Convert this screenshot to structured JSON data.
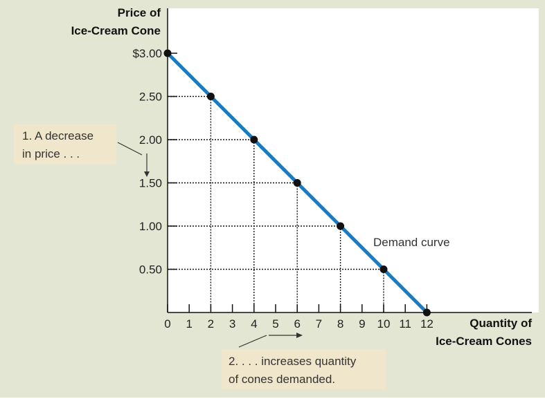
{
  "colors": {
    "background": "#e3e6d2",
    "plot_area": "#ffffff",
    "annotation_box": "#f0e6cc",
    "curve": "#1a7ac2",
    "points": "#111111",
    "guide_lines": "#111111",
    "axis": "#111111"
  },
  "y_axis_title": [
    "Price of",
    "Ice-Cream Cone"
  ],
  "x_axis_title": [
    "Quantity of",
    "Ice-Cream Cones"
  ],
  "annotation_1": [
    "1. A decrease",
    "in price . . ."
  ],
  "annotation_2": [
    "2. . . . increases quantity",
    "of cones demanded."
  ],
  "curve_label": "Demand curve",
  "chart_data": {
    "type": "line",
    "title": "",
    "xlabel": "Quantity of Ice-Cream Cones",
    "ylabel": "Price of Ice-Cream Cone",
    "xlim": [
      0,
      12
    ],
    "ylim": [
      0,
      3
    ],
    "grid": false,
    "x_ticks": [
      0,
      1,
      2,
      3,
      4,
      5,
      6,
      7,
      8,
      9,
      10,
      11,
      12
    ],
    "x_tick_labels": [
      "0",
      "1",
      "2",
      "3",
      "4",
      "5",
      "6",
      "7",
      "8",
      "9",
      "10",
      "11",
      "12"
    ],
    "y_ticks": [
      3.0,
      2.5,
      2.0,
      1.5,
      1.0,
      0.5
    ],
    "y_tick_labels": [
      "$3.00",
      "2.50",
      "2.00",
      "1.50",
      "1.00",
      "0.50"
    ],
    "series": [
      {
        "name": "Demand curve",
        "x": [
          0,
          2,
          4,
          6,
          8,
          10,
          12
        ],
        "y": [
          3.0,
          2.5,
          2.0,
          1.5,
          1.0,
          0.5,
          0.0
        ]
      }
    ]
  }
}
